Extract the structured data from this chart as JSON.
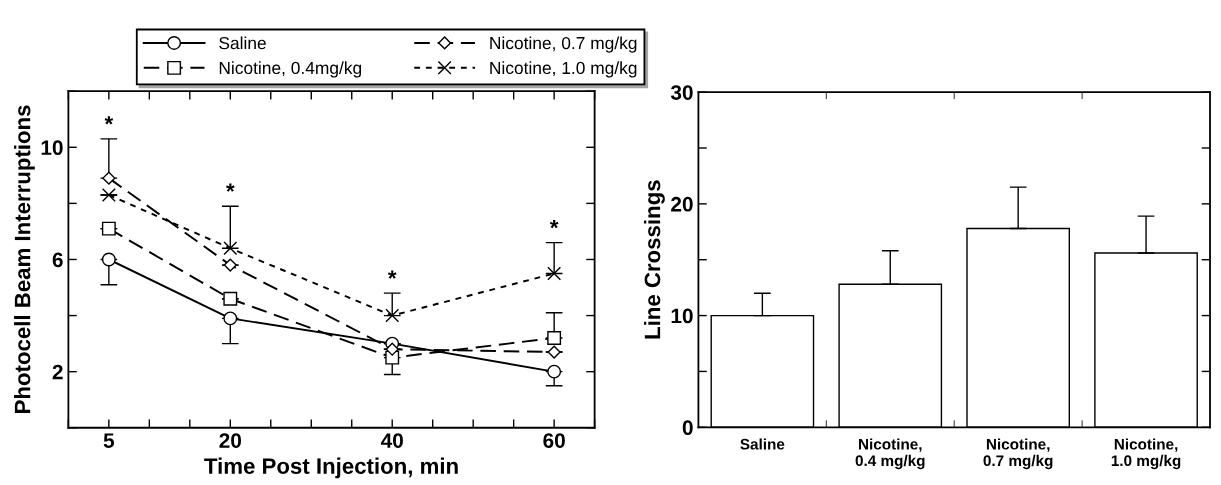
{
  "chart_data": [
    {
      "type": "line",
      "xlabel": "Time Post Injection, min",
      "ylabel": "Photocell Beam Interruptions",
      "x": [
        5,
        20,
        40,
        60
      ],
      "xlim": [
        0,
        65
      ],
      "xticks": [
        {
          "value": 0,
          "label": null
        },
        5,
        {
          "value": 10,
          "label": null
        },
        {
          "value": 15,
          "label": null
        },
        20,
        {
          "value": 25,
          "label": null
        },
        {
          "value": 30,
          "label": null
        },
        {
          "value": 35,
          "label": null
        },
        40,
        {
          "value": 45,
          "label": null
        },
        {
          "value": 50,
          "label": null
        },
        {
          "value": 55,
          "label": null
        },
        60,
        {
          "value": 65,
          "label": null
        }
      ],
      "ylim": [
        0,
        12
      ],
      "yticks": [
        {
          "value": 0,
          "label": null
        },
        2,
        {
          "value": 4,
          "label": null
        },
        6,
        {
          "value": 8,
          "label": null
        },
        10,
        {
          "value": 12,
          "label": null
        }
      ],
      "legend": "top",
      "grid": false,
      "series": [
        {
          "name": "Saline",
          "color": "#000000",
          "marker": "circle",
          "line_style": "solid",
          "values": [
            6.0,
            3.9,
            3.0,
            2.0
          ],
          "errors": [
            [
              5.1,
              6.0
            ],
            [
              3.0,
              3.9
            ],
            null,
            [
              1.5,
              2.0
            ]
          ]
        },
        {
          "name": "Nicotine, 0.4mg/kg",
          "color": "#000000",
          "marker": "square",
          "line_style": "dashed",
          "values": [
            7.1,
            4.6,
            2.5,
            3.2
          ],
          "errors": [
            null,
            null,
            [
              1.9,
              2.5
            ],
            [
              3.2,
              4.1
            ]
          ]
        },
        {
          "name": "Nicotine, 0.7 mg/kg",
          "color": "#000000",
          "marker": "diamond",
          "line_style": "dashed",
          "values": [
            8.9,
            5.8,
            2.8,
            2.7
          ],
          "errors": [
            [
              8.9,
              10.3
            ],
            null,
            null,
            null
          ]
        },
        {
          "name": "Nicotine, 1.0 mg/kg",
          "color": "#000000",
          "marker": "cross",
          "line_style": "dotted",
          "values": [
            8.3,
            6.4,
            4.0,
            5.5
          ],
          "errors": [
            null,
            [
              6.4,
              7.9
            ],
            [
              4.0,
              4.8
            ],
            [
              5.5,
              6.6
            ]
          ]
        }
      ],
      "annotations": [
        {
          "text": "*",
          "x": 5,
          "y": 10.3
        },
        {
          "text": "*",
          "x": 20,
          "y": 7.9
        },
        {
          "text": "*",
          "x": 40,
          "y": 4.8
        },
        {
          "text": "*",
          "x": 60,
          "y": 6.6
        }
      ]
    },
    {
      "type": "bar",
      "ylabel": "Line Crossings",
      "categories": [
        "Saline",
        "Nicotine,\n0.4 mg/kg",
        "Nicotine,\n0.7 mg/kg",
        "Nicotine,\n1.0 mg/kg"
      ],
      "values": [
        10.0,
        12.8,
        17.8,
        15.6
      ],
      "errors": [
        [
          10.0,
          12.0
        ],
        [
          12.8,
          15.8
        ],
        [
          17.8,
          21.5
        ],
        [
          15.6,
          18.9
        ]
      ],
      "color": "#ffffff",
      "ylim": [
        0,
        30
      ],
      "yticks": [
        0,
        {
          "value": 5,
          "label": null
        },
        10,
        {
          "value": 15,
          "label": null
        },
        20,
        {
          "value": 25,
          "label": null
        },
        30
      ],
      "grid": false
    }
  ]
}
